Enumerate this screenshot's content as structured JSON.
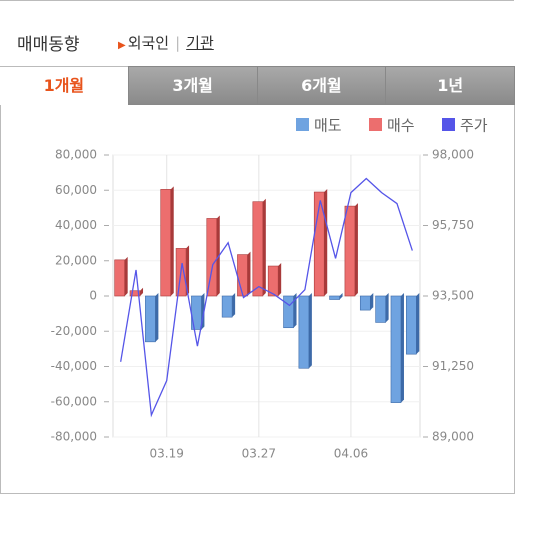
{
  "header": {
    "title": "매매동향",
    "links": [
      "외국인",
      "기관"
    ]
  },
  "tabs": [
    "1개월",
    "3개월",
    "6개월",
    "1년"
  ],
  "chart_data": {
    "type": "bar",
    "categories": [
      null,
      null,
      null,
      "03.19",
      null,
      null,
      null,
      null,
      null,
      "03.27",
      null,
      null,
      null,
      null,
      null,
      "04.06",
      null,
      null,
      null,
      null
    ],
    "series": [
      {
        "name": "매도",
        "color": "#6fa3e0",
        "values": [
          0,
          0,
          -26000,
          0,
          0,
          -19000,
          0,
          -12000,
          0,
          0,
          0,
          -18000,
          -41000,
          0,
          -2000,
          0,
          -8000,
          -15000,
          -60500,
          -33000
        ]
      },
      {
        "name": "매수",
        "color": "#ec6e6e",
        "values": [
          20500,
          3000,
          0,
          60500,
          27000,
          0,
          44000,
          0,
          23500,
          53500,
          17000,
          0,
          0,
          59000,
          0,
          51000,
          0,
          0,
          0,
          0
        ]
      },
      {
        "name": "주가",
        "color": "#5555e8",
        "type": "line",
        "axis": "y2",
        "values": [
          91400,
          94330,
          89700,
          90800,
          94550,
          91900,
          94500,
          95200,
          93450,
          93800,
          93550,
          93200,
          93700,
          96550,
          94700,
          96800,
          97250,
          96800,
          96450,
          94950
        ]
      }
    ],
    "ylim": [
      -80000,
      80000
    ],
    "yticks": [
      {
        "value": -80000,
        "label": "-80,000"
      },
      {
        "value": -60000,
        "label": "-60,000"
      },
      {
        "value": -40000,
        "label": "-40,000"
      },
      {
        "value": -20000,
        "label": "-20,000"
      },
      0,
      {
        "value": 20000,
        "label": "20,000"
      },
      {
        "value": 40000,
        "label": "40,000"
      },
      {
        "value": 60000,
        "label": "60,000"
      },
      {
        "value": 80000,
        "label": "80,000"
      }
    ],
    "y2lim": [
      89000,
      98000
    ],
    "y2ticks": [
      {
        "value": 89000,
        "label": "89,000"
      },
      {
        "value": 91250,
        "label": "91,250"
      },
      {
        "value": 93500,
        "label": "93,500"
      },
      {
        "value": 95750,
        "label": "95,750"
      },
      {
        "value": 98000,
        "label": "98,000"
      }
    ],
    "grid": true
  }
}
